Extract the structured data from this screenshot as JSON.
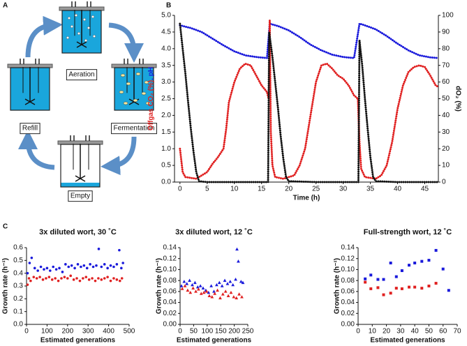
{
  "diagram": {
    "label": "A",
    "stages": [
      "Aeration",
      "Fermentation",
      "Empty",
      "Refill"
    ]
  },
  "chart_data": [
    {
      "type": "line",
      "panel": "B",
      "xlabel": "Time (h)",
      "ylabel_parts": [
        {
          "text": "Offgas CO₂ (%)",
          "color": "#e02020"
        },
        {
          "text": ", pH",
          "color": "#1a1adb"
        }
      ],
      "y2label": "dO₂ (%)",
      "xlim": [
        -1,
        47.5
      ],
      "ylim": [
        0,
        5
      ],
      "y2lim": [
        0,
        100
      ],
      "xticks": [
        0,
        5,
        10,
        15,
        20,
        25,
        30,
        35,
        40,
        45
      ],
      "yticks": [
        {
          "value": 0,
          "label": "0.0"
        },
        0.5,
        {
          "value": 1,
          "label": "1.0"
        },
        1.5,
        {
          "value": 2,
          "label": "2.0"
        },
        2.5,
        {
          "value": 3,
          "label": "3.0"
        },
        3.5,
        {
          "value": 4,
          "label": "4.0"
        },
        4.5,
        {
          "value": 5,
          "label": "5.0"
        }
      ],
      "y2ticks": [
        0,
        10,
        20,
        30,
        40,
        50,
        60,
        70,
        80,
        90,
        100
      ],
      "series": [
        {
          "color": "#1a1adb",
          "x": [
            0,
            2,
            4,
            6,
            8,
            10,
            12,
            14,
            16,
            16.5,
            18,
            20,
            22,
            24,
            26,
            28,
            30,
            32,
            33,
            34,
            36,
            38,
            40,
            42,
            44,
            46,
            47.5
          ],
          "values": [
            4.7,
            4.62,
            4.5,
            4.3,
            4.1,
            3.92,
            3.8,
            3.75,
            3.72,
            4.75,
            4.68,
            4.55,
            4.35,
            4.12,
            3.95,
            3.82,
            3.75,
            3.72,
            4.75,
            4.7,
            4.58,
            4.38,
            4.15,
            3.95,
            3.8,
            3.74,
            3.72
          ]
        },
        {
          "color": "#e02020",
          "x": [
            0,
            0.5,
            1,
            3,
            4,
            5,
            6,
            7,
            8,
            8.5,
            9,
            10,
            11,
            12,
            13,
            14,
            15,
            16,
            16.3,
            16.5,
            16.7,
            17,
            17.5,
            19,
            21,
            22,
            23,
            24,
            25,
            26,
            27,
            28,
            29,
            30,
            31,
            32,
            32.7,
            33,
            33.3,
            34,
            36,
            37,
            38,
            39,
            40,
            41,
            42,
            43,
            44,
            45,
            46,
            47,
            47.5
          ],
          "values": [
            1.0,
            0.3,
            0.15,
            0.1,
            0.2,
            0.3,
            0.55,
            0.75,
            1.0,
            1.6,
            2.4,
            3.0,
            3.4,
            3.55,
            3.5,
            3.2,
            2.9,
            2.7,
            2.5,
            4.85,
            1.5,
            0.5,
            0.15,
            0.1,
            0.2,
            0.5,
            1.0,
            2.0,
            3.0,
            3.5,
            3.55,
            3.4,
            3.2,
            3.1,
            2.9,
            2.6,
            2.5,
            1.2,
            0.4,
            0.15,
            0.1,
            0.2,
            0.5,
            1.2,
            2.2,
            2.9,
            3.3,
            3.45,
            3.5,
            3.45,
            3.2,
            2.9,
            2.85
          ]
        },
        {
          "color": "#111111",
          "axis": "y2",
          "x": [
            0,
            0.5,
            1,
            1.5,
            2,
            2.5,
            3,
            3.5,
            5,
            10,
            16.2,
            16.4,
            17,
            17.5,
            18,
            18.5,
            19,
            19.5,
            20,
            25,
            32.8,
            33,
            33.5,
            34,
            34.5,
            35,
            35.5,
            36,
            40,
            47.5
          ],
          "values": [
            95,
            80,
            65,
            48,
            32,
            18,
            6,
            0.5,
            0,
            0,
            0,
            90,
            75,
            60,
            45,
            28,
            14,
            3,
            0.5,
            0,
            0,
            85,
            70,
            50,
            32,
            15,
            3,
            0.5,
            0,
            0
          ]
        }
      ]
    },
    {
      "type": "scatter",
      "panel": "C",
      "title": "3x diluted wort, 30 ˚C",
      "xlabel": "Estimated generations",
      "ylabel": "Growth rate (h⁻¹)",
      "marker": "circle",
      "xlim": [
        0,
        500
      ],
      "ylim": [
        0,
        0.6
      ],
      "xticks": [
        0,
        100,
        200,
        300,
        400,
        500
      ],
      "yticks": [
        {
          "value": 0,
          "label": "0.0"
        },
        0.1,
        0.2,
        0.3,
        0.4,
        0.5,
        0.6
      ],
      "series": [
        {
          "color": "#1a1adb",
          "x": [
            5,
            15,
            25,
            40,
            55,
            70,
            85,
            100,
            115,
            130,
            145,
            160,
            175,
            190,
            205,
            220,
            235,
            250,
            265,
            280,
            295,
            310,
            325,
            340,
            352,
            365,
            380,
            395,
            410,
            425,
            440,
            452,
            462,
            470
          ],
          "values": [
            0.4,
            0.48,
            0.52,
            0.44,
            0.42,
            0.45,
            0.43,
            0.44,
            0.42,
            0.45,
            0.43,
            0.44,
            0.41,
            0.47,
            0.45,
            0.46,
            0.44,
            0.47,
            0.45,
            0.46,
            0.44,
            0.47,
            0.45,
            0.46,
            0.59,
            0.45,
            0.47,
            0.44,
            0.46,
            0.45,
            0.47,
            0.58,
            0.44,
            0.48
          ]
        },
        {
          "color": "#e02020",
          "x": [
            5,
            12,
            20,
            35,
            50,
            65,
            80,
            95,
            110,
            125,
            140,
            155,
            170,
            185,
            200,
            215,
            230,
            245,
            260,
            275,
            290,
            305,
            320,
            335,
            350,
            365,
            380,
            395,
            410,
            425,
            440,
            455,
            465
          ],
          "values": [
            0.31,
            0.36,
            0.34,
            0.37,
            0.36,
            0.37,
            0.35,
            0.36,
            0.37,
            0.35,
            0.36,
            0.34,
            0.36,
            0.37,
            0.36,
            0.38,
            0.35,
            0.36,
            0.34,
            0.36,
            0.37,
            0.35,
            0.36,
            0.34,
            0.36,
            0.35,
            0.36,
            0.37,
            0.34,
            0.36,
            0.35,
            0.34,
            0.36
          ]
        }
      ]
    },
    {
      "type": "scatter",
      "title": "3x diluted wort, 12 ˚C",
      "xlabel": "Estimated generations",
      "ylabel": "Growth rate (h⁻¹)",
      "marker": "triangle",
      "xlim": [
        0,
        250
      ],
      "ylim": [
        0,
        0.14
      ],
      "xticks": [
        0,
        50,
        100,
        150,
        200,
        250
      ],
      "yticks": [
        {
          "value": 0,
          "label": "0.00"
        },
        0.02,
        0.04,
        0.06,
        0.08,
        {
          "value": 0.1,
          "label": "0.10"
        },
        0.12,
        0.14
      ],
      "series": [
        {
          "color": "#1a1adb",
          "x": [
            5,
            15,
            25,
            35,
            45,
            55,
            65,
            75,
            85,
            95,
            105,
            115,
            125,
            135,
            145,
            155,
            165,
            175,
            185,
            195,
            205,
            210,
            215,
            225,
            232
          ],
          "values": [
            0.07,
            0.078,
            0.074,
            0.08,
            0.072,
            0.076,
            0.068,
            0.07,
            0.066,
            0.062,
            0.058,
            0.07,
            0.06,
            0.072,
            0.076,
            0.07,
            0.08,
            0.074,
            0.078,
            0.072,
            0.082,
            0.137,
            0.115,
            0.078,
            0.076
          ]
        },
        {
          "color": "#e02020",
          "x": [
            8,
            18,
            28,
            38,
            48,
            58,
            68,
            78,
            88,
            98,
            108,
            118,
            128,
            138,
            148,
            158,
            168,
            178,
            188,
            198,
            208,
            218,
            228
          ],
          "values": [
            0.065,
            0.07,
            0.062,
            0.058,
            0.066,
            0.06,
            0.064,
            0.056,
            0.058,
            0.06,
            0.052,
            0.05,
            0.056,
            0.062,
            0.048,
            0.055,
            0.06,
            0.052,
            0.058,
            0.05,
            0.048,
            0.055,
            0.05
          ]
        }
      ]
    },
    {
      "type": "scatter",
      "title": "Full-strength wort, 12 ˚C",
      "xlabel": "Estimated generations",
      "ylabel": "Growth rate (h⁻¹)",
      "marker": "square",
      "xlim": [
        0,
        70
      ],
      "ylim": [
        0,
        0.14
      ],
      "xticks": [
        0,
        10,
        20,
        30,
        40,
        50,
        60,
        70
      ],
      "yticks": [
        {
          "value": 0,
          "label": "0.00"
        },
        0.02,
        0.04,
        0.06,
        0.08,
        {
          "value": 0.1,
          "label": "0.10"
        },
        0.12,
        0.14
      ],
      "series": [
        {
          "color": "#1a1adb",
          "x": [
            5,
            9,
            14,
            18,
            23,
            27,
            31,
            36,
            40,
            45,
            50,
            55,
            60,
            64
          ],
          "values": [
            0.083,
            0.09,
            0.082,
            0.082,
            0.112,
            0.087,
            0.098,
            0.108,
            0.112,
            0.115,
            0.117,
            0.135,
            0.101,
            0.062
          ]
        },
        {
          "color": "#e02020",
          "x": [
            5,
            9,
            14,
            18,
            23,
            27,
            31,
            36,
            40,
            45,
            50,
            55
          ],
          "values": [
            0.077,
            0.065,
            0.067,
            0.054,
            0.057,
            0.066,
            0.065,
            0.068,
            0.068,
            0.066,
            0.07,
            0.075
          ]
        }
      ]
    }
  ]
}
